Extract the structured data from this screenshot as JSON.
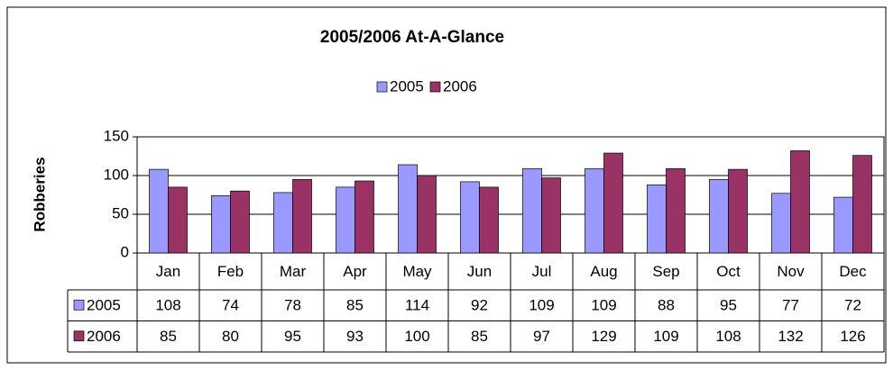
{
  "chart_data": {
    "type": "bar",
    "title": "2005/2006 At-A-Glance",
    "y_label": "Robberies",
    "categories": [
      "Jan",
      "Feb",
      "Mar",
      "Apr",
      "May",
      "Jun",
      "Jul",
      "Aug",
      "Sep",
      "Oct",
      "Nov",
      "Dec"
    ],
    "series": [
      {
        "name": "2005",
        "color": "#9999ff",
        "values": [
          108,
          74,
          78,
          85,
          114,
          92,
          109,
          109,
          88,
          95,
          77,
          72
        ]
      },
      {
        "name": "2006",
        "color": "#993366",
        "values": [
          85,
          80,
          95,
          93,
          100,
          85,
          97,
          129,
          109,
          108,
          132,
          126
        ]
      }
    ],
    "ylim": [
      0,
      150
    ],
    "yticks": [
      0,
      50,
      100,
      150
    ],
    "grid": true,
    "legend": "top",
    "data_table": true
  }
}
